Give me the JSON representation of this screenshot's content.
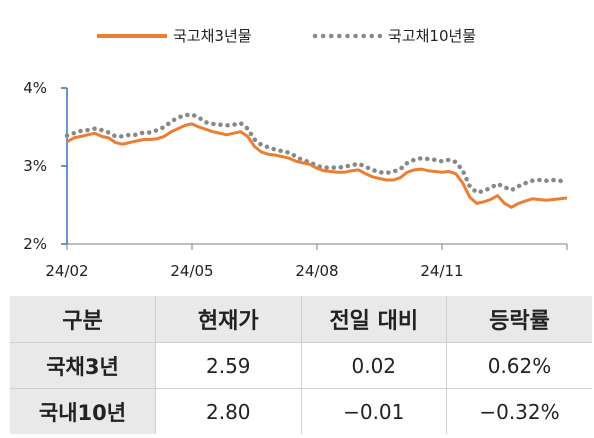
{
  "chart_data": {
    "type": "line",
    "ylim": [
      2,
      4
    ],
    "y_ticks": [
      "2%",
      "3%",
      "4%"
    ],
    "x_ticks": [
      "24/02",
      "24/05",
      "24/08",
      "24/11"
    ],
    "series": [
      {
        "name": "국고채3년물",
        "color": "#ED7D31",
        "style": "solid",
        "values": [
          3.31,
          3.36,
          3.38,
          3.4,
          3.42,
          3.38,
          3.36,
          3.3,
          3.28,
          3.3,
          3.32,
          3.34,
          3.34,
          3.35,
          3.38,
          3.44,
          3.48,
          3.52,
          3.54,
          3.5,
          3.47,
          3.44,
          3.42,
          3.4,
          3.42,
          3.44,
          3.38,
          3.25,
          3.18,
          3.15,
          3.14,
          3.12,
          3.1,
          3.06,
          3.04,
          3.02,
          2.97,
          2.94,
          2.93,
          2.92,
          2.92,
          2.94,
          2.95,
          2.9,
          2.86,
          2.84,
          2.82,
          2.82,
          2.85,
          2.92,
          2.95,
          2.96,
          2.94,
          2.93,
          2.92,
          2.93,
          2.9,
          2.78,
          2.6,
          2.52,
          2.54,
          2.57,
          2.62,
          2.52,
          2.47,
          2.52,
          2.55,
          2.58,
          2.57,
          2.56,
          2.57,
          2.58,
          2.59
        ]
      },
      {
        "name": "국고채10년물",
        "color": "#888888",
        "style": "dotted",
        "values": [
          3.39,
          3.42,
          3.45,
          3.46,
          3.48,
          3.46,
          3.43,
          3.38,
          3.38,
          3.4,
          3.4,
          3.43,
          3.43,
          3.46,
          3.5,
          3.57,
          3.62,
          3.65,
          3.66,
          3.62,
          3.56,
          3.54,
          3.53,
          3.52,
          3.53,
          3.55,
          3.48,
          3.34,
          3.27,
          3.24,
          3.21,
          3.19,
          3.17,
          3.12,
          3.07,
          3.05,
          3.0,
          2.98,
          2.98,
          2.98,
          2.99,
          3.01,
          3.03,
          2.99,
          2.95,
          2.92,
          2.91,
          2.93,
          2.96,
          3.04,
          3.08,
          3.1,
          3.09,
          3.08,
          3.06,
          3.08,
          3.05,
          2.94,
          2.74,
          2.66,
          2.68,
          2.72,
          2.77,
          2.73,
          2.69,
          2.74,
          2.78,
          2.81,
          2.82,
          2.81,
          2.82,
          2.81,
          2.8
        ]
      }
    ]
  },
  "table": {
    "headers": [
      "구분",
      "현재가",
      "전일 대비",
      "등락률"
    ],
    "rows": [
      [
        "국채3년",
        "2.59",
        "0.02",
        "0.62%"
      ],
      [
        "국내10년",
        "2.80",
        "−0.01",
        "−0.32%"
      ]
    ]
  }
}
